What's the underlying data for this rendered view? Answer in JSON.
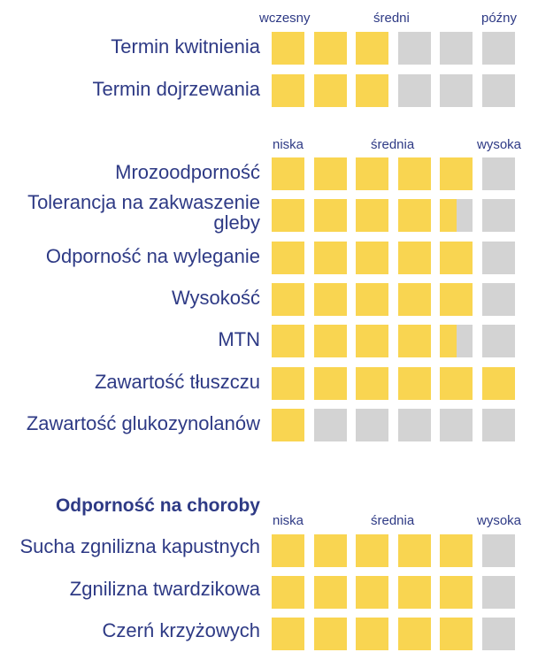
{
  "colors": {
    "filled": "#f9d551",
    "empty": "#d3d3d3",
    "text": "#2e3a85"
  },
  "scales": {
    "timing": {
      "low": "wczesny",
      "mid": "średni",
      "high": "późny"
    },
    "level": {
      "low": "niska",
      "mid": "średnia",
      "high": "wysoka"
    }
  },
  "groups": {
    "timing": [
      {
        "label": "Termin kwitnienia",
        "rating": 3
      },
      {
        "label": "Termin dojrzewania",
        "rating": 3
      }
    ],
    "traits": [
      {
        "label": "Mrozoodporność",
        "rating": 5
      },
      {
        "label": "Tolerancja na zakwaszenie gleby",
        "rating": 4.5
      },
      {
        "label": "Odporność na wyleganie",
        "rating": 5
      },
      {
        "label": "Wysokość",
        "rating": 5
      },
      {
        "label": "MTN",
        "rating": 4.5
      },
      {
        "label": "Zawartość tłuszczu",
        "rating": 6
      },
      {
        "label": "Zawartość glukozynolanów",
        "rating": 1
      }
    ],
    "diseases": {
      "title": "Odporność na choroby",
      "rows": [
        {
          "label": "Sucha zgnilizna kapustnych",
          "rating": 5
        },
        {
          "label": "Zgnilizna twardzikowa",
          "rating": 5
        },
        {
          "label": "Czerń krzyżowych",
          "rating": 5
        }
      ]
    }
  }
}
